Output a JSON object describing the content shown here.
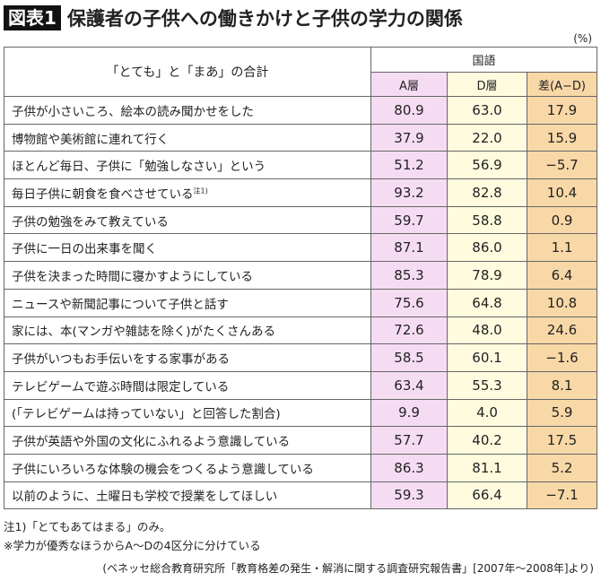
{
  "title": {
    "badge": "図表1",
    "text": "保護者の子供への働きかけと子供の学力の関係"
  },
  "unit": "(%)",
  "table": {
    "row_header": "「とても」と「まあ」の合計",
    "group_header": "国語",
    "columns": [
      "A層",
      "D層",
      "差(A−D)"
    ],
    "colors": {
      "A": "#f6dcf3",
      "D": "#fefbdf",
      "diff": "#f8d8a6"
    },
    "rows": [
      {
        "label": "子供が小さいころ、絵本の読み聞かせをした",
        "note": "",
        "a": "80.9",
        "d": "63.0",
        "diff": "17.9"
      },
      {
        "label": "博物館や美術館に連れて行く",
        "note": "",
        "a": "37.9",
        "d": "22.0",
        "diff": "15.9"
      },
      {
        "label": "ほとんど毎日、子供に「勉強しなさい」という",
        "note": "",
        "a": "51.2",
        "d": "56.9",
        "diff": "−5.7"
      },
      {
        "label": "毎日子供に朝食を食べさせている",
        "note": "注1)",
        "a": "93.2",
        "d": "82.8",
        "diff": "10.4"
      },
      {
        "label": "子供の勉強をみて教えている",
        "note": "",
        "a": "59.7",
        "d": "58.8",
        "diff": "0.9"
      },
      {
        "label": "子供に一日の出来事を聞く",
        "note": "",
        "a": "87.1",
        "d": "86.0",
        "diff": "1.1"
      },
      {
        "label": "子供を決まった時間に寝かすようにしている",
        "note": "",
        "a": "85.3",
        "d": "78.9",
        "diff": "6.4"
      },
      {
        "label": "ニュースや新聞記事について子供と話す",
        "note": "",
        "a": "75.6",
        "d": "64.8",
        "diff": "10.8"
      },
      {
        "label": "家には、本(マンガや雑誌を除く)がたくさんある",
        "note": "",
        "a": "72.6",
        "d": "48.0",
        "diff": "24.6"
      },
      {
        "label": "子供がいつもお手伝いをする家事がある",
        "note": "",
        "a": "58.5",
        "d": "60.1",
        "diff": "−1.6"
      },
      {
        "label": "テレビゲームで遊ぶ時間は限定している",
        "note": "",
        "a": "63.4",
        "d": "55.3",
        "diff": "8.1"
      },
      {
        "label": "(「テレビゲームは持っていない」と回答した割合)",
        "note": "",
        "a": "9.9",
        "d": "4.0",
        "diff": "5.9"
      },
      {
        "label": "子供が英語や外国の文化にふれるよう意識している",
        "note": "",
        "a": "57.7",
        "d": "40.2",
        "diff": "17.5"
      },
      {
        "label": "子供にいろいろな体験の機会をつくるよう意識している",
        "note": "",
        "a": "86.3",
        "d": "81.1",
        "diff": "5.2"
      },
      {
        "label": "以前のように、土曜日も学校で授業をしてほしい",
        "note": "",
        "a": "59.3",
        "d": "66.4",
        "diff": "−7.1"
      }
    ]
  },
  "notes": [
    "注1)「とてもあてはまる」のみ。",
    "※学力が優秀なほうからA〜Dの4区分に分けている"
  ],
  "source": "(ベネッセ総合教育研究所「教育格差の発生・解消に関する調査研究報告書」[2007年〜2008年]より)"
}
